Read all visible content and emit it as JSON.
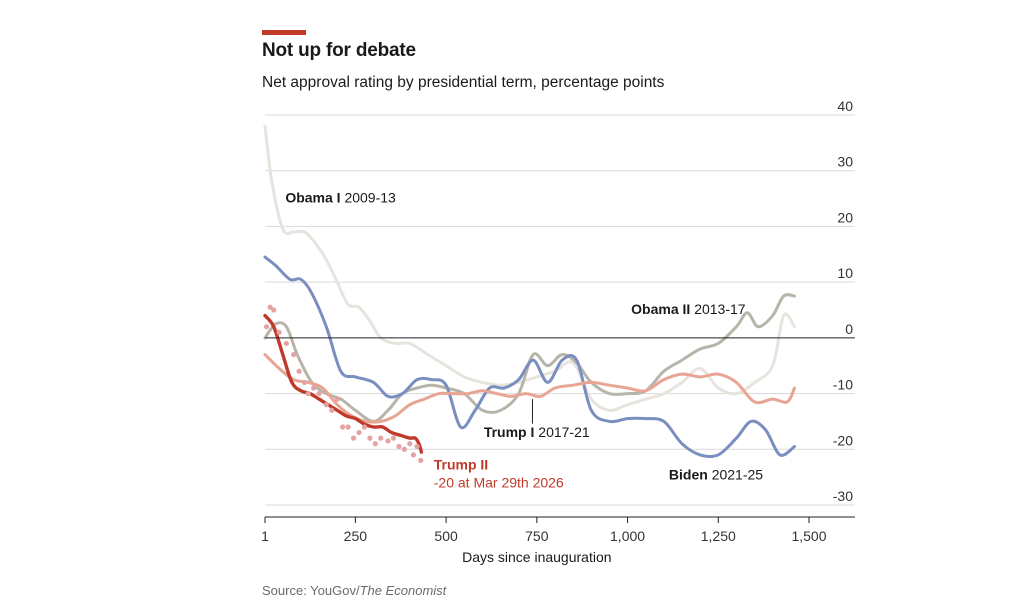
{
  "header": {
    "title": "Not up for debate",
    "subtitle": "Net approval rating by presidential term, percentage points"
  },
  "footer": {
    "source_prefix": "Source: YouGov/",
    "source_publication": "The Economist"
  },
  "colors": {
    "accent": "#c0392b",
    "trump_ii": "#c0392b",
    "trump_ii_dots": "#e4a3a3",
    "trump_i": "#e8a593",
    "biden": "#7a8fc0",
    "obama_i": "#e6e4dc",
    "obama_ii": "#b7b5aa",
    "grid": "#d9d9d9",
    "zero_line": "#222222",
    "axis_text": "#333333"
  },
  "chart_data": {
    "type": "line",
    "title": "Not up for debate",
    "subtitle": "Net approval rating by presidential term, percentage points",
    "xlabel": "Days since inauguration",
    "ylabel": "",
    "xlim": [
      1,
      1600
    ],
    "ylim": [
      -30,
      40
    ],
    "x_ticks": [
      1,
      250,
      500,
      750,
      1000,
      1250,
      1500
    ],
    "x_tick_labels": [
      "1",
      "250",
      "500",
      "750",
      "1,000",
      "1,250",
      "1,500"
    ],
    "y_ticks": [
      40,
      30,
      20,
      10,
      0,
      -10,
      -20,
      -30
    ],
    "y_tick_labels": [
      "40",
      "30",
      "20",
      "10",
      "0",
      "-10",
      "-20",
      "-30"
    ],
    "grid": true,
    "series": [
      {
        "name": "Obama I 2009-13",
        "label": "Obama I 2009-13",
        "color_key": "obama_i",
        "points": [
          [
            1,
            38
          ],
          [
            20,
            28
          ],
          [
            50,
            19.5
          ],
          [
            80,
            19
          ],
          [
            110,
            19
          ],
          [
            140,
            17
          ],
          [
            170,
            14
          ],
          [
            200,
            10
          ],
          [
            230,
            6
          ],
          [
            260,
            5.5
          ],
          [
            290,
            3
          ],
          [
            320,
            0
          ],
          [
            360,
            -1
          ],
          [
            400,
            -1
          ],
          [
            450,
            -3
          ],
          [
            500,
            -5
          ],
          [
            550,
            -7
          ],
          [
            600,
            -8
          ],
          [
            650,
            -8.5
          ],
          [
            700,
            -8
          ],
          [
            750,
            -7
          ],
          [
            800,
            -6
          ],
          [
            850,
            -4.5
          ],
          [
            900,
            -11
          ],
          [
            950,
            -13
          ],
          [
            1000,
            -12
          ],
          [
            1050,
            -11
          ],
          [
            1100,
            -10
          ],
          [
            1150,
            -8
          ],
          [
            1200,
            -5.5
          ],
          [
            1250,
            -9
          ],
          [
            1300,
            -10
          ],
          [
            1350,
            -8
          ],
          [
            1400,
            -5
          ],
          [
            1430,
            4
          ],
          [
            1460,
            2
          ]
        ]
      },
      {
        "name": "Obama II 2013-17",
        "label": "Obama II 2013-17",
        "color_key": "obama_ii",
        "points": [
          [
            1,
            0
          ],
          [
            30,
            2.5
          ],
          [
            60,
            2
          ],
          [
            90,
            -3
          ],
          [
            130,
            -8
          ],
          [
            170,
            -10
          ],
          [
            210,
            -11
          ],
          [
            250,
            -13
          ],
          [
            300,
            -15
          ],
          [
            340,
            -13
          ],
          [
            380,
            -10
          ],
          [
            420,
            -9
          ],
          [
            460,
            -8.5
          ],
          [
            500,
            -9
          ],
          [
            550,
            -10
          ],
          [
            600,
            -13
          ],
          [
            650,
            -13
          ],
          [
            700,
            -10
          ],
          [
            740,
            -3
          ],
          [
            780,
            -5
          ],
          [
            820,
            -3
          ],
          [
            860,
            -4.5
          ],
          [
            900,
            -8
          ],
          [
            950,
            -10
          ],
          [
            1000,
            -10
          ],
          [
            1050,
            -9.5
          ],
          [
            1100,
            -6
          ],
          [
            1150,
            -4
          ],
          [
            1200,
            -2
          ],
          [
            1250,
            -1
          ],
          [
            1300,
            2
          ],
          [
            1330,
            4.5
          ],
          [
            1360,
            2
          ],
          [
            1400,
            4
          ],
          [
            1430,
            7.5
          ],
          [
            1460,
            7.5
          ]
        ]
      },
      {
        "name": "Biden 2021-25",
        "label": "Biden 2021-25",
        "color_key": "biden",
        "points": [
          [
            1,
            14.5
          ],
          [
            30,
            13
          ],
          [
            70,
            10.5
          ],
          [
            100,
            10.5
          ],
          [
            130,
            8
          ],
          [
            170,
            2
          ],
          [
            210,
            -6
          ],
          [
            250,
            -7
          ],
          [
            300,
            -8
          ],
          [
            340,
            -10.5
          ],
          [
            380,
            -10
          ],
          [
            420,
            -7.5
          ],
          [
            460,
            -7.5
          ],
          [
            500,
            -8.5
          ],
          [
            540,
            -16
          ],
          [
            580,
            -13
          ],
          [
            620,
            -9
          ],
          [
            660,
            -9
          ],
          [
            700,
            -7.5
          ],
          [
            740,
            -4
          ],
          [
            780,
            -8
          ],
          [
            820,
            -4
          ],
          [
            860,
            -4
          ],
          [
            900,
            -13
          ],
          [
            950,
            -15
          ],
          [
            1000,
            -14.5
          ],
          [
            1050,
            -14.5
          ],
          [
            1100,
            -15
          ],
          [
            1150,
            -19
          ],
          [
            1200,
            -21
          ],
          [
            1250,
            -21
          ],
          [
            1300,
            -18
          ],
          [
            1340,
            -15
          ],
          [
            1380,
            -16.5
          ],
          [
            1420,
            -21
          ],
          [
            1460,
            -19.5
          ]
        ]
      },
      {
        "name": "Trump I 2017-21",
        "label": "Trump I 2017-21",
        "color_key": "trump_i",
        "points": [
          [
            1,
            -3
          ],
          [
            40,
            -5.5
          ],
          [
            80,
            -7.5
          ],
          [
            120,
            -8
          ],
          [
            160,
            -9
          ],
          [
            200,
            -12
          ],
          [
            240,
            -14
          ],
          [
            280,
            -15
          ],
          [
            320,
            -15
          ],
          [
            360,
            -14
          ],
          [
            400,
            -12
          ],
          [
            440,
            -11
          ],
          [
            480,
            -10
          ],
          [
            520,
            -10
          ],
          [
            560,
            -10
          ],
          [
            600,
            -9.5
          ],
          [
            640,
            -10
          ],
          [
            680,
            -10.5
          ],
          [
            720,
            -10
          ],
          [
            760,
            -10.5
          ],
          [
            800,
            -9
          ],
          [
            850,
            -8.5
          ],
          [
            900,
            -8
          ],
          [
            950,
            -8.5
          ],
          [
            1000,
            -9
          ],
          [
            1050,
            -9.5
          ],
          [
            1100,
            -7.5
          ],
          [
            1150,
            -6.5
          ],
          [
            1200,
            -7
          ],
          [
            1250,
            -6.5
          ],
          [
            1300,
            -8
          ],
          [
            1350,
            -11.5
          ],
          [
            1400,
            -11
          ],
          [
            1440,
            -11.5
          ],
          [
            1460,
            -9
          ]
        ]
      },
      {
        "name": "Trump II",
        "label": "Trump II",
        "annotation": "-20 at Mar 29th 2026",
        "color_key": "trump_ii",
        "points": [
          [
            1,
            4
          ],
          [
            25,
            2
          ],
          [
            50,
            -3
          ],
          [
            75,
            -8
          ],
          [
            100,
            -9.5
          ],
          [
            125,
            -10
          ],
          [
            150,
            -11
          ],
          [
            175,
            -12
          ],
          [
            200,
            -13
          ],
          [
            225,
            -14
          ],
          [
            250,
            -14.5
          ],
          [
            275,
            -15.5
          ],
          [
            300,
            -16
          ],
          [
            325,
            -16
          ],
          [
            350,
            -17
          ],
          [
            375,
            -17.5
          ],
          [
            400,
            -18
          ],
          [
            415,
            -18
          ],
          [
            425,
            -19
          ],
          [
            432,
            -20.5
          ]
        ]
      }
    ],
    "trump_ii_polls": [
      [
        5,
        2
      ],
      [
        15,
        5.5
      ],
      [
        25,
        5
      ],
      [
        40,
        1
      ],
      [
        60,
        -1
      ],
      [
        80,
        -3
      ],
      [
        95,
        -6
      ],
      [
        110,
        -8
      ],
      [
        120,
        -10
      ],
      [
        135,
        -9
      ],
      [
        150,
        -10
      ],
      [
        170,
        -12
      ],
      [
        185,
        -13
      ],
      [
        200,
        -11
      ],
      [
        215,
        -16
      ],
      [
        230,
        -16
      ],
      [
        245,
        -18
      ],
      [
        260,
        -17
      ],
      [
        275,
        -16
      ],
      [
        290,
        -18
      ],
      [
        305,
        -19
      ],
      [
        320,
        -18
      ],
      [
        340,
        -18.5
      ],
      [
        355,
        -18
      ],
      [
        370,
        -19.5
      ],
      [
        385,
        -20
      ],
      [
        400,
        -19
      ],
      [
        410,
        -21
      ],
      [
        420,
        -19.5
      ],
      [
        430,
        -22
      ]
    ],
    "annotations": {
      "obama_i": "Obama I 2009-13",
      "obama_ii": "Obama II 2013-17",
      "trump_i": "Trump I 2017-21",
      "biden": "Biden 2021-25",
      "trump_ii": "Trump II",
      "trump_ii_note": "-20 at Mar 29th 2026"
    }
  }
}
